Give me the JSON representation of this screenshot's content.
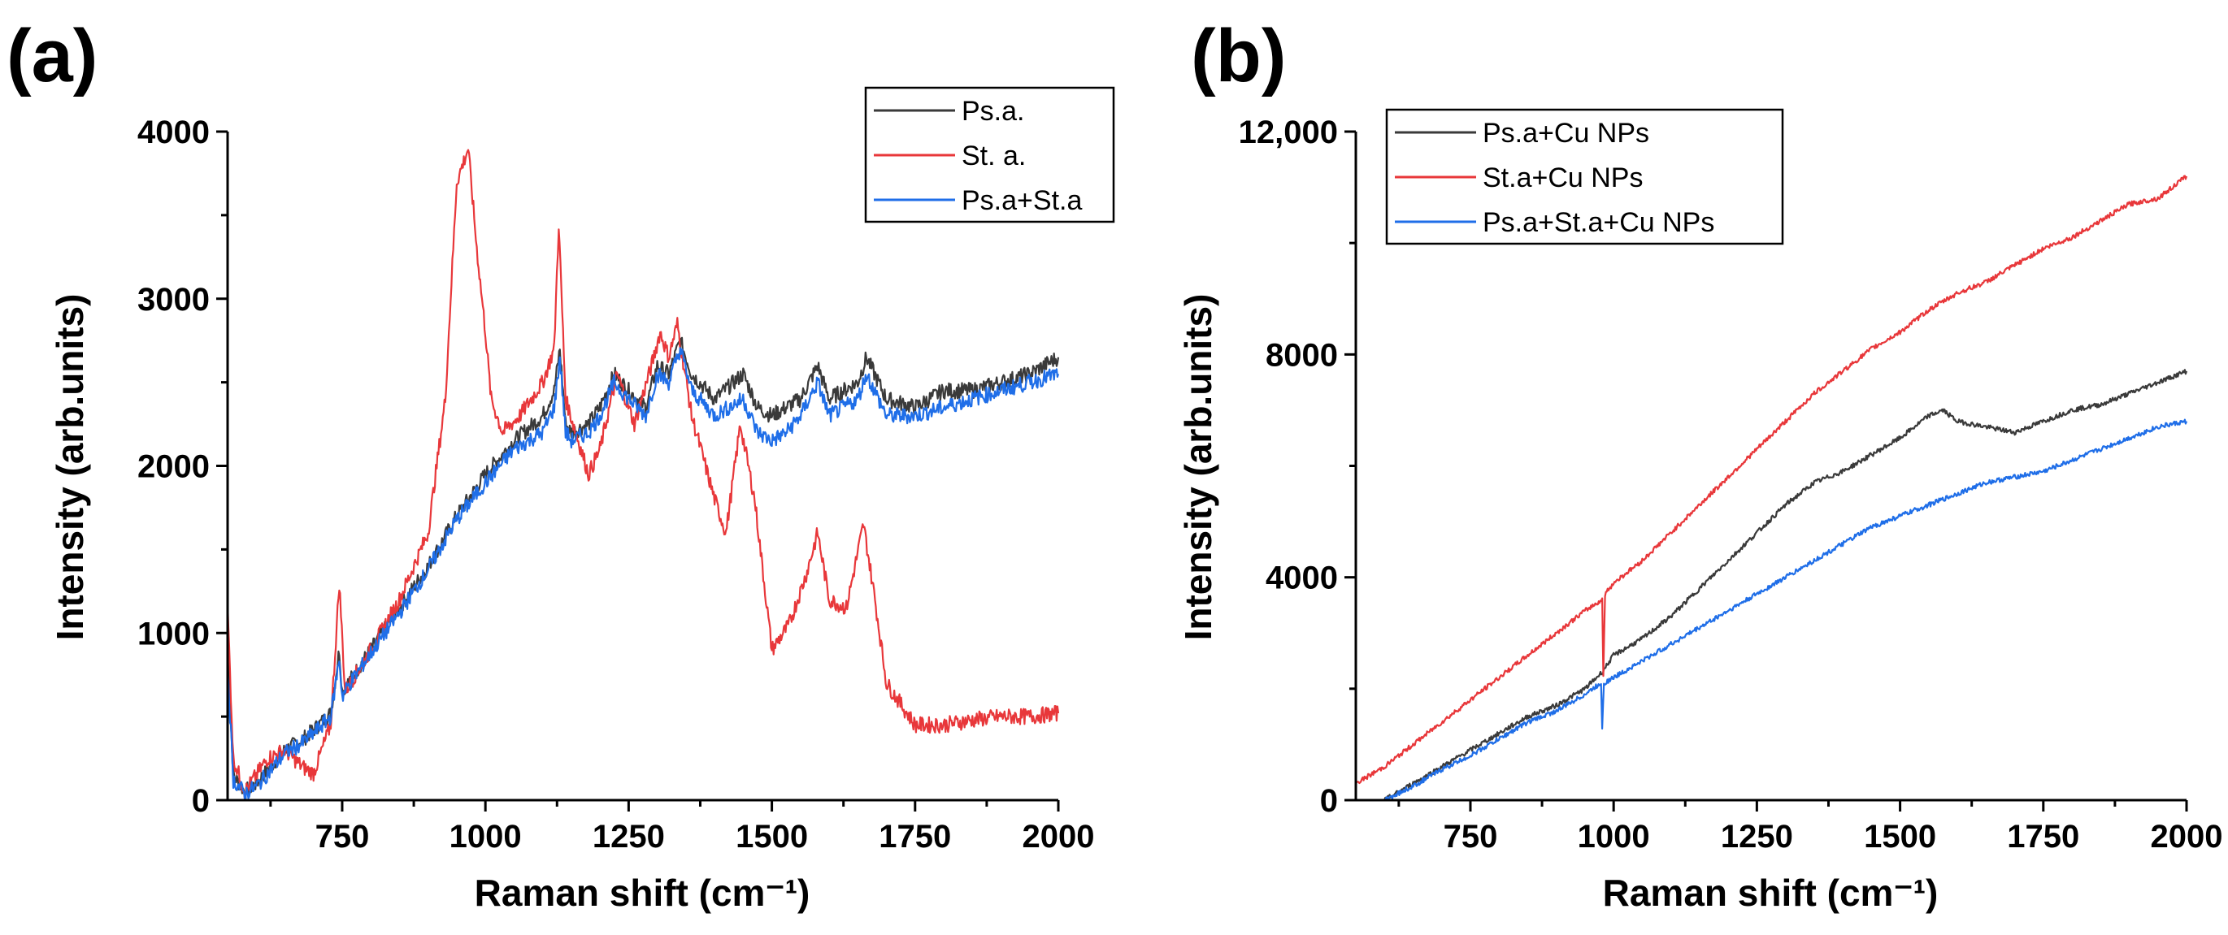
{
  "chart_data": [
    {
      "type": "line",
      "panel_label": "(a)",
      "xlabel": "Raman shift (cm⁻¹)",
      "ylabel": "Intensity (arb.units)",
      "xlim": [
        550,
        2000
      ],
      "ylim": [
        0,
        4000
      ],
      "xticks": [
        750,
        1000,
        1250,
        1500,
        1750,
        2000
      ],
      "xtick_labels": [
        "750",
        "1000",
        "1250",
        "1500",
        "1750",
        "2000"
      ],
      "yticks": [
        0,
        1000,
        2000,
        3000,
        4000
      ],
      "ytick_labels": [
        "0",
        "1000",
        "2000",
        "3000",
        "4000"
      ],
      "legend_position": "top-right",
      "series": [
        {
          "name": "Ps.a.",
          "color": "#3a3a3a",
          "x": [
            550,
            560,
            580,
            600,
            620,
            650,
            680,
            700,
            730,
            745,
            750,
            760,
            800,
            850,
            900,
            950,
            1000,
            1050,
            1100,
            1120,
            1130,
            1140,
            1150,
            1180,
            1200,
            1225,
            1250,
            1280,
            1300,
            1320,
            1340,
            1360,
            1400,
            1450,
            1475,
            1500,
            1525,
            1550,
            1580,
            1600,
            1625,
            1650,
            1665,
            1700,
            1750,
            1800,
            1850,
            1900,
            1950,
            2000
          ],
          "y": [
            900,
            150,
            50,
            100,
            180,
            300,
            360,
            420,
            520,
            900,
            650,
            700,
            900,
            1150,
            1400,
            1700,
            1950,
            2150,
            2300,
            2450,
            2700,
            2250,
            2200,
            2250,
            2350,
            2550,
            2450,
            2350,
            2600,
            2550,
            2750,
            2550,
            2400,
            2550,
            2350,
            2300,
            2350,
            2400,
            2600,
            2400,
            2450,
            2500,
            2650,
            2400,
            2350,
            2450,
            2450,
            2500,
            2550,
            2650
          ]
        },
        {
          "name": "St. a.",
          "color": "#e8373a",
          "x": [
            550,
            560,
            580,
            600,
            620,
            650,
            680,
            700,
            730,
            745,
            755,
            800,
            850,
            900,
            930,
            950,
            970,
            985,
            1000,
            1010,
            1030,
            1060,
            1100,
            1120,
            1128,
            1140,
            1180,
            1200,
            1230,
            1260,
            1290,
            1305,
            1320,
            1335,
            1360,
            1400,
            1420,
            1445,
            1470,
            1500,
            1530,
            1560,
            1580,
            1600,
            1630,
            1660,
            1680,
            1700,
            1750,
            1800,
            1850,
            1900,
            1950,
            2000
          ],
          "y": [
            1150,
            250,
            50,
            150,
            250,
            300,
            200,
            160,
            450,
            1300,
            650,
            900,
            1200,
            1600,
            2400,
            3700,
            3900,
            3300,
            2800,
            2400,
            2200,
            2300,
            2500,
            2700,
            3450,
            2400,
            1950,
            2100,
            2550,
            2250,
            2600,
            2800,
            2650,
            2850,
            2300,
            1800,
            1600,
            2250,
            1800,
            900,
            1050,
            1350,
            1600,
            1200,
            1150,
            1650,
            1200,
            700,
            450,
            450,
            480,
            500,
            500,
            520
          ]
        },
        {
          "name": "Ps.a+St.a",
          "color": "#1f6ee8",
          "x": [
            550,
            560,
            580,
            600,
            620,
            650,
            680,
            700,
            730,
            745,
            750,
            760,
            800,
            850,
            900,
            950,
            1000,
            1050,
            1100,
            1120,
            1130,
            1140,
            1150,
            1180,
            1200,
            1225,
            1250,
            1280,
            1300,
            1320,
            1340,
            1360,
            1400,
            1450,
            1475,
            1500,
            1525,
            1550,
            1580,
            1600,
            1625,
            1650,
            1665,
            1700,
            1750,
            1800,
            1850,
            1900,
            1950,
            2000
          ],
          "y": [
            800,
            120,
            40,
            80,
            160,
            280,
            340,
            400,
            500,
            850,
            620,
            680,
            880,
            1120,
            1380,
            1680,
            1900,
            2100,
            2200,
            2350,
            2650,
            2200,
            2150,
            2200,
            2300,
            2500,
            2400,
            2300,
            2550,
            2500,
            2700,
            2450,
            2300,
            2400,
            2200,
            2150,
            2200,
            2300,
            2500,
            2300,
            2350,
            2400,
            2550,
            2300,
            2300,
            2350,
            2400,
            2450,
            2500,
            2550
          ]
        }
      ]
    },
    {
      "type": "line",
      "panel_label": "(b)",
      "xlabel": "Raman shift (cm⁻¹)",
      "ylabel": "Intensity (arb.units)",
      "xlim": [
        550,
        2000
      ],
      "ylim": [
        0,
        12000
      ],
      "xticks": [
        750,
        1000,
        1250,
        1500,
        1750,
        2000
      ],
      "xtick_labels": [
        "750",
        "1000",
        "1250",
        "1500",
        "1750",
        "2000"
      ],
      "yticks": [
        0,
        4000,
        8000,
        12000
      ],
      "ytick_labels": [
        "0",
        "4000",
        "8000",
        "12,000"
      ],
      "legend_position": "top-left",
      "series": [
        {
          "name": "Ps.a+Cu NPs",
          "color": "#3a3a3a",
          "x": [
            600,
            650,
            700,
            750,
            800,
            850,
            900,
            950,
            980,
            1000,
            1050,
            1100,
            1150,
            1200,
            1250,
            1300,
            1350,
            1400,
            1450,
            1500,
            1550,
            1575,
            1600,
            1650,
            1700,
            1750,
            1800,
            1850,
            1900,
            1950,
            2000
          ],
          "y": [
            0,
            300,
            600,
            900,
            1200,
            1500,
            1700,
            2000,
            2300,
            2600,
            2900,
            3300,
            3800,
            4300,
            4800,
            5300,
            5700,
            5900,
            6200,
            6500,
            6900,
            7000,
            6800,
            6700,
            6600,
            6800,
            7000,
            7100,
            7300,
            7500,
            7700
          ]
        },
        {
          "name": "St.a+Cu NPs",
          "color": "#e8373a",
          "x": [
            550,
            600,
            650,
            700,
            750,
            800,
            850,
            900,
            950,
            980,
            982,
            985,
            1000,
            1050,
            1100,
            1150,
            1200,
            1250,
            1300,
            1350,
            1400,
            1450,
            1500,
            1550,
            1600,
            1650,
            1700,
            1750,
            1800,
            1850,
            1900,
            1950,
            2000
          ],
          "y": [
            300,
            600,
            1000,
            1400,
            1800,
            2200,
            2600,
            3000,
            3400,
            3600,
            2200,
            3700,
            3900,
            4300,
            4800,
            5300,
            5800,
            6300,
            6800,
            7300,
            7700,
            8100,
            8400,
            8800,
            9100,
            9300,
            9600,
            9900,
            10100,
            10400,
            10700,
            10800,
            11200
          ]
        },
        {
          "name": "Ps.a+St.a+Cu NPs",
          "color": "#1f6ee8",
          "x": [
            600,
            650,
            700,
            750,
            800,
            850,
            900,
            950,
            978,
            980,
            983,
            1000,
            1050,
            1100,
            1150,
            1200,
            1250,
            1300,
            1350,
            1400,
            1450,
            1500,
            1550,
            1600,
            1650,
            1700,
            1750,
            1800,
            1850,
            1900,
            1950,
            2000
          ],
          "y": [
            0,
            250,
            550,
            800,
            1100,
            1400,
            1600,
            1900,
            2100,
            1300,
            2100,
            2200,
            2500,
            2800,
            3100,
            3400,
            3700,
            4000,
            4300,
            4600,
            4900,
            5100,
            5300,
            5500,
            5700,
            5800,
            5900,
            6100,
            6300,
            6500,
            6700,
            6800
          ]
        }
      ]
    }
  ]
}
